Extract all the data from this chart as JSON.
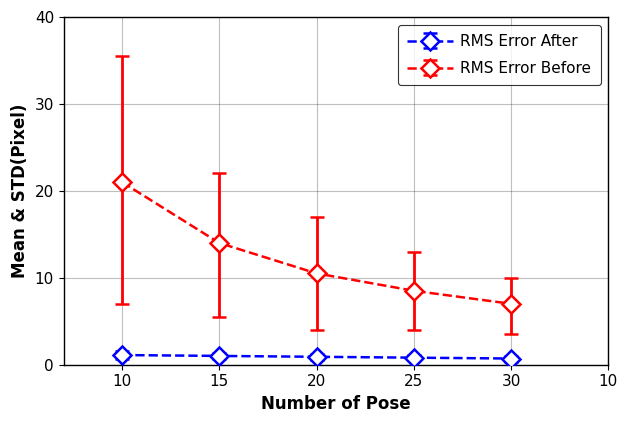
{
  "x": [
    10,
    15,
    20,
    25,
    30
  ],
  "after_mean": [
    1.1,
    1.0,
    0.9,
    0.8,
    0.7
  ],
  "after_err_upper": [
    0.5,
    0.3,
    0.3,
    0.3,
    0.3
  ],
  "after_err_lower": [
    0.5,
    0.4,
    0.4,
    0.3,
    0.35
  ],
  "before_mean": [
    21.0,
    14.0,
    10.5,
    8.5,
    7.0
  ],
  "before_err_upper": [
    14.5,
    8.0,
    6.5,
    4.5,
    3.0
  ],
  "before_err_lower": [
    14.0,
    8.5,
    6.5,
    4.5,
    3.5
  ],
  "xlabel": "Number of Pose",
  "ylabel": "Mean & STD(Pixel)",
  "xlim_left": 7,
  "xlim_right": 34,
  "ylim": [
    0,
    40
  ],
  "yticks": [
    0,
    10,
    20,
    30,
    40
  ],
  "xticks": [
    10,
    15,
    20,
    25,
    30
  ],
  "xtick_labels": [
    "10",
    "15",
    "20",
    "25",
    "30",
    "10"
  ],
  "extra_xtick": 35,
  "legend_after": "RMS Error After",
  "legend_before": "RMS Error Before",
  "color_after": "#0000FF",
  "color_before": "#FF0000",
  "background_color": "#FFFFFF",
  "marker_size": 9,
  "line_width": 1.8,
  "cap_size": 5,
  "grid_color": "#000000",
  "grid_alpha": 0.25,
  "grid_linewidth": 0.8,
  "font_size_label": 12,
  "font_size_tick": 11,
  "font_size_legend": 11
}
